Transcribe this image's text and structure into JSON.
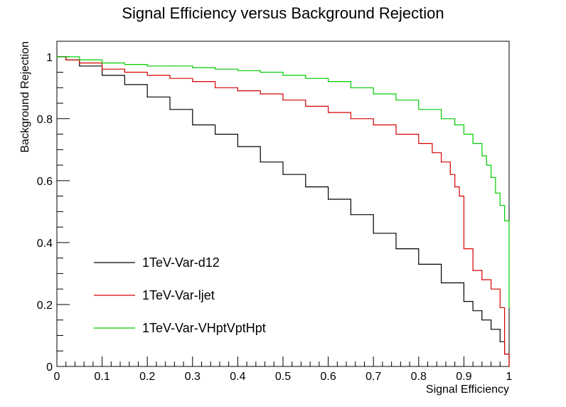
{
  "chart_data": {
    "type": "line",
    "title": "Signal Efficiency versus Background Rejection",
    "xlabel": "Signal Efficiency",
    "ylabel": "Background Rejection",
    "xlim": [
      0,
      1
    ],
    "ylim": [
      0,
      1.05
    ],
    "x_ticks": [
      "0",
      "0.1",
      "0.2",
      "0.3",
      "0.4",
      "0.5",
      "0.6",
      "0.7",
      "0.8",
      "0.9",
      "1"
    ],
    "y_ticks": [
      "0",
      "0.2",
      "0.4",
      "0.6",
      "0.8",
      "1"
    ],
    "grid": false,
    "legend_position": "bottom-left",
    "step_style": true,
    "series": [
      {
        "name": "1TeV-Var-d12",
        "color": "#000000",
        "x": [
          0,
          0.02,
          0.05,
          0.1,
          0.15,
          0.2,
          0.25,
          0.3,
          0.35,
          0.4,
          0.45,
          0.5,
          0.55,
          0.6,
          0.65,
          0.7,
          0.75,
          0.8,
          0.85,
          0.9,
          0.92,
          0.94,
          0.96,
          0.98,
          0.99,
          1.0
        ],
        "values": [
          1.0,
          0.99,
          0.97,
          0.94,
          0.91,
          0.87,
          0.83,
          0.78,
          0.75,
          0.71,
          0.66,
          0.62,
          0.58,
          0.54,
          0.49,
          0.43,
          0.38,
          0.33,
          0.27,
          0.21,
          0.18,
          0.15,
          0.12,
          0.08,
          0.04,
          0.0
        ]
      },
      {
        "name": "1TeV-Var-ljet",
        "color": "#d40000",
        "x": [
          0,
          0.02,
          0.05,
          0.1,
          0.15,
          0.2,
          0.25,
          0.3,
          0.35,
          0.4,
          0.45,
          0.5,
          0.55,
          0.6,
          0.65,
          0.7,
          0.75,
          0.8,
          0.83,
          0.85,
          0.87,
          0.88,
          0.89,
          0.9,
          0.92,
          0.94,
          0.96,
          0.98,
          0.99,
          1.0
        ],
        "values": [
          1.0,
          0.99,
          0.98,
          0.96,
          0.95,
          0.94,
          0.93,
          0.92,
          0.9,
          0.89,
          0.88,
          0.86,
          0.84,
          0.82,
          0.8,
          0.78,
          0.75,
          0.72,
          0.69,
          0.66,
          0.62,
          0.58,
          0.55,
          0.38,
          0.31,
          0.28,
          0.25,
          0.19,
          0.04,
          0.0
        ]
      },
      {
        "name": "1TeV-Var-VHptVptHpt",
        "color": "#00cc00",
        "x": [
          0,
          0.02,
          0.05,
          0.1,
          0.15,
          0.2,
          0.25,
          0.3,
          0.35,
          0.4,
          0.45,
          0.5,
          0.55,
          0.6,
          0.65,
          0.7,
          0.75,
          0.8,
          0.85,
          0.88,
          0.9,
          0.92,
          0.94,
          0.95,
          0.96,
          0.97,
          0.98,
          0.99,
          1.0
        ],
        "values": [
          1.0,
          1.0,
          0.99,
          0.98,
          0.975,
          0.97,
          0.97,
          0.965,
          0.96,
          0.955,
          0.95,
          0.94,
          0.93,
          0.92,
          0.9,
          0.88,
          0.86,
          0.83,
          0.8,
          0.78,
          0.75,
          0.72,
          0.68,
          0.65,
          0.61,
          0.56,
          0.52,
          0.47,
          0.19
        ]
      }
    ]
  }
}
